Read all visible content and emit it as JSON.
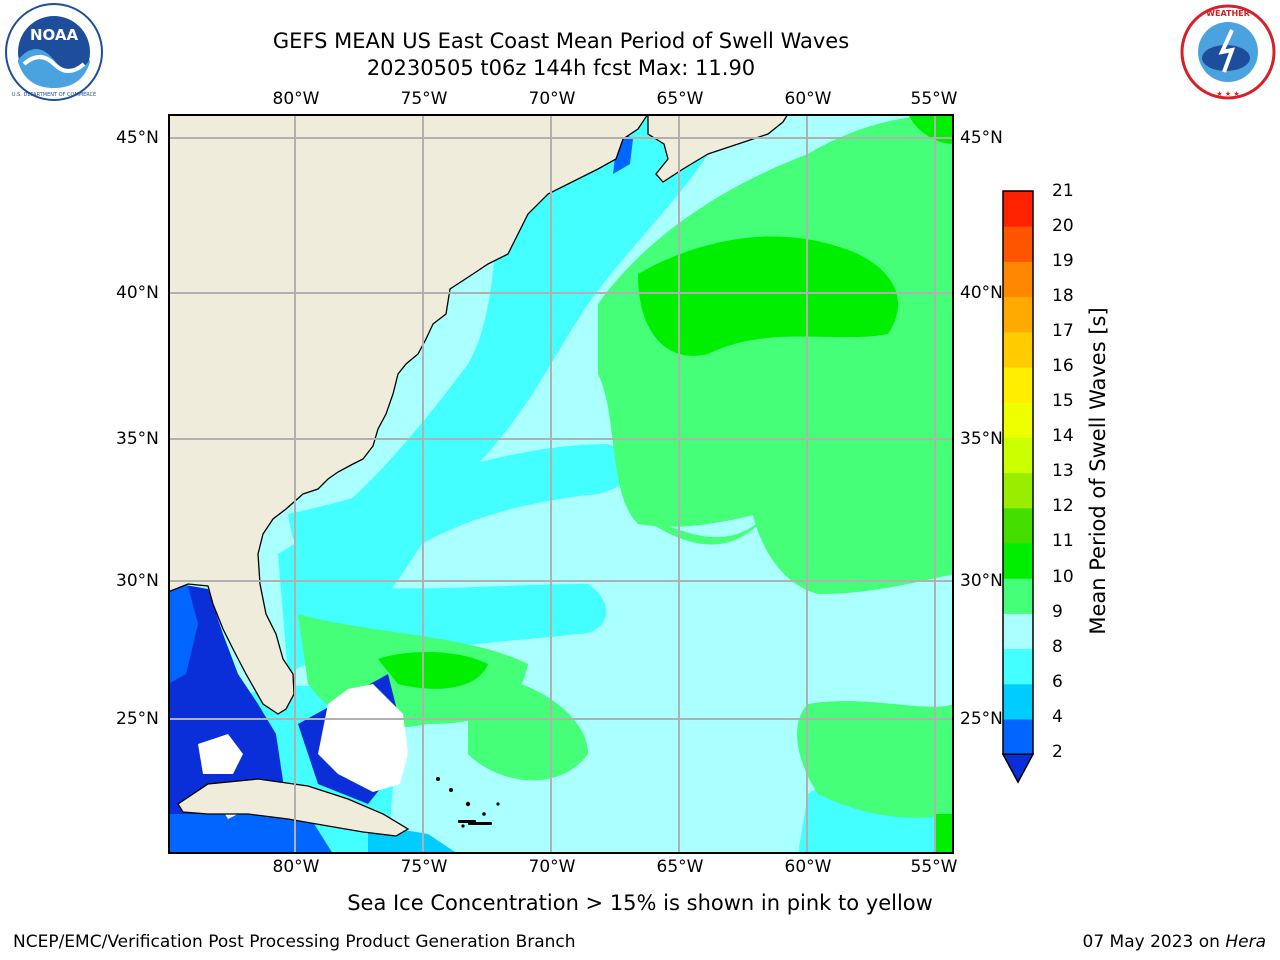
{
  "header": {
    "title_line1": "GEFS MEAN US East Coast Mean Period of Swell Waves",
    "title_line2": "20230505 t06z 144h fcst   Max: 11.90"
  },
  "logos": {
    "noaa": {
      "center_text": "NOAA",
      "ring_text": "NATIONAL OCEANIC AND ATMOSPHERIC ADMINISTRATION · U.S. DEPARTMENT OF COMMERCE",
      "colors": [
        "#1e4d9b",
        "#4aa3df",
        "#ffffff"
      ]
    },
    "nws": {
      "ring_text": "NATIONAL WEATHER SERVICE",
      "colors": [
        "#d62028",
        "#1e4d9b",
        "#ffffff"
      ]
    }
  },
  "map": {
    "lon_labels": [
      "80°W",
      "75°W",
      "70°W",
      "65°W",
      "60°W",
      "55°W"
    ],
    "lat_labels": [
      "45°N",
      "40°N",
      "35°N",
      "30°N",
      "25°N"
    ],
    "land_color": "#efecdb",
    "grid_color": "#b0b0b0"
  },
  "colorbar": {
    "label": "Mean Period of Swell Waves [s]",
    "ticks": [
      "2",
      "4",
      "6",
      "8",
      "9",
      "10",
      "11",
      "12",
      "13",
      "14",
      "15",
      "16",
      "17",
      "18",
      "19",
      "20",
      "21"
    ],
    "colors": [
      "#0066ff",
      "#00ccff",
      "#44ffff",
      "#aaffff",
      "#44ff77",
      "#00ee00",
      "#44dd00",
      "#99ee00",
      "#ccff00",
      "#eeff00",
      "#ffee00",
      "#ffcc00",
      "#ffaa00",
      "#ff8800",
      "#ff5500",
      "#ff2200"
    ],
    "extend_color": "#0a2fd8"
  },
  "note": "Sea Ice Concentration > 15% is shown in pink to yellow",
  "footer": {
    "left": "NCEP/EMC/Verification Post Processing Product Generation Branch",
    "date": "07 May 2023 on ",
    "machine": "Hera"
  }
}
